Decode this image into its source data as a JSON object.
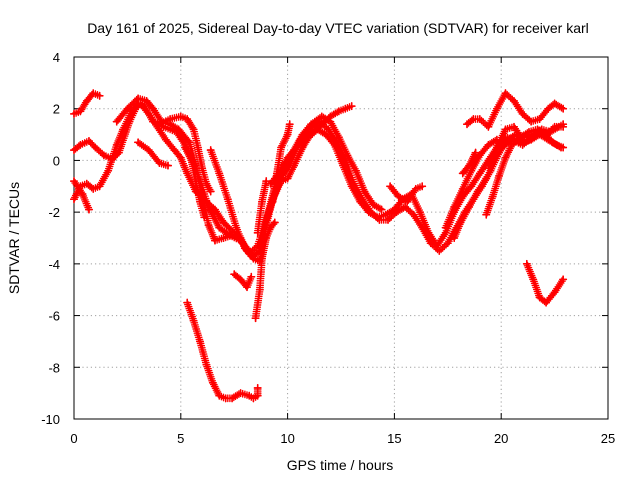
{
  "chart_data": {
    "type": "scatter",
    "title": "Day 161 of 2025, Sidereal Day-to-day VTEC variation (SDTVAR) for receiver karl",
    "xlabel": "GPS time / hours",
    "ylabel": "SDTVAR / TECUs",
    "xlim": [
      0,
      25
    ],
    "ylim": [
      -10,
      4
    ],
    "xticks": [
      "0",
      "5",
      "10",
      "15",
      "20",
      "25"
    ],
    "yticks": [
      "4",
      "2",
      "0",
      "-2",
      "-4",
      "-6",
      "-8",
      "-10"
    ],
    "grid": true,
    "marker": "plus",
    "color": "#ff0000",
    "series": [
      {
        "name": "s1",
        "points": [
          [
            0,
            1.8
          ],
          [
            0.3,
            1.9
          ],
          [
            0.6,
            2.3
          ],
          [
            0.9,
            2.6
          ],
          [
            1.2,
            2.5
          ]
        ]
      },
      {
        "name": "s2",
        "points": [
          [
            0,
            0.4
          ],
          [
            0.3,
            0.6
          ],
          [
            0.7,
            0.75
          ],
          [
            1.0,
            0.5
          ],
          [
            1.4,
            0.2
          ],
          [
            1.8,
            0.05
          ],
          [
            2.1,
            0.3
          ],
          [
            2.6,
            1.5
          ],
          [
            3.0,
            2.2
          ],
          [
            3.3,
            2.1
          ],
          [
            3.7,
            1.5
          ],
          [
            4.2,
            1.3
          ],
          [
            4.8,
            1.1
          ],
          [
            5.2,
            0.6
          ],
          [
            5.5,
            0.1
          ],
          [
            5.9,
            -0.8
          ],
          [
            6.3,
            -1.8
          ],
          [
            6.8,
            -2.6
          ],
          [
            7.3,
            -2.9
          ],
          [
            7.8,
            -3.1
          ],
          [
            8.1,
            -3.4
          ],
          [
            8.4,
            -3.8
          ],
          [
            8.7,
            -3.9
          ],
          [
            9.0,
            -2.5
          ],
          [
            9.3,
            -1.5
          ],
          [
            9.7,
            -0.8
          ],
          [
            10.0,
            -0.7
          ],
          [
            10.3,
            -0.2
          ],
          [
            10.7,
            0.5
          ],
          [
            11.0,
            0.9
          ],
          [
            11.4,
            1.2
          ],
          [
            11.8,
            1.0
          ],
          [
            12.2,
            0.6
          ],
          [
            12.6,
            -0.2
          ],
          [
            13.0,
            -1.0
          ],
          [
            13.4,
            -1.6
          ],
          [
            13.8,
            -2.0
          ],
          [
            14.2,
            -2.2
          ],
          [
            14.6,
            -2.1
          ],
          [
            15.0,
            -1.9
          ],
          [
            15.4,
            -1.5
          ],
          [
            15.8,
            -1.3
          ],
          [
            16.2,
            -2.0
          ],
          [
            16.6,
            -2.8
          ],
          [
            17.0,
            -3.3
          ],
          [
            17.4,
            -2.8
          ],
          [
            17.8,
            -2.0
          ],
          [
            18.2,
            -1.4
          ],
          [
            18.6,
            -1.0
          ],
          [
            19.0,
            -0.5
          ],
          [
            19.4,
            0.0
          ],
          [
            19.8,
            0.5
          ],
          [
            20.2,
            0.9
          ],
          [
            20.6,
            0.8
          ],
          [
            21.0,
            0.7
          ],
          [
            21.4,
            0.8
          ],
          [
            21.8,
            1.0
          ],
          [
            22.2,
            0.8
          ],
          [
            22.6,
            0.6
          ],
          [
            22.9,
            0.5
          ]
        ]
      },
      {
        "name": "s3",
        "points": [
          [
            0,
            -1.5
          ],
          [
            0.3,
            -1.0
          ],
          [
            0.6,
            -0.9
          ],
          [
            0.9,
            -1.1
          ],
          [
            1.2,
            -1.0
          ],
          [
            1.6,
            -0.4
          ],
          [
            2.0,
            0.6
          ],
          [
            2.3,
            1.2
          ],
          [
            2.7,
            1.9
          ],
          [
            3.1,
            2.2
          ],
          [
            3.5,
            1.8
          ],
          [
            3.9,
            1.3
          ],
          [
            4.3,
            0.8
          ],
          [
            4.7,
            0.4
          ],
          [
            5.0,
            0.1
          ],
          [
            5.3,
            -0.5
          ],
          [
            5.7,
            -1.2
          ],
          [
            6.2,
            -1.6
          ],
          [
            6.6,
            -1.9
          ],
          [
            7.0,
            -2.4
          ],
          [
            7.5,
            -2.8
          ],
          [
            7.9,
            -3.2
          ],
          [
            8.2,
            -3.6
          ],
          [
            8.6,
            -3.3
          ],
          [
            9.0,
            -2.3
          ],
          [
            9.4,
            -1.3
          ],
          [
            9.8,
            -0.5
          ],
          [
            10.2,
            0.1
          ],
          [
            10.6,
            0.8
          ],
          [
            11.0,
            1.2
          ],
          [
            11.5,
            1.5
          ],
          [
            11.9,
            1.2
          ],
          [
            12.3,
            0.7
          ],
          [
            12.7,
            0.0
          ],
          [
            13.1,
            -0.9
          ],
          [
            13.5,
            -1.5
          ],
          [
            13.9,
            -2.0
          ],
          [
            14.3,
            -2.3
          ],
          [
            14.7,
            -2.3
          ],
          [
            15.1,
            -2.0
          ],
          [
            15.5,
            -1.8
          ],
          [
            15.9,
            -2.1
          ],
          [
            16.3,
            -2.6
          ],
          [
            16.7,
            -3.2
          ],
          [
            17.1,
            -3.5
          ],
          [
            17.5,
            -3.2
          ],
          [
            17.9,
            -2.6
          ],
          [
            18.3,
            -2.0
          ],
          [
            18.7,
            -1.5
          ],
          [
            19.1,
            -1.0
          ],
          [
            19.5,
            -0.4
          ],
          [
            19.9,
            0.3
          ],
          [
            20.3,
            0.8
          ],
          [
            20.7,
            1.0
          ],
          [
            21.1,
            0.9
          ],
          [
            21.5,
            1.0
          ],
          [
            21.9,
            1.2
          ],
          [
            22.3,
            1.1
          ],
          [
            22.7,
            1.3
          ],
          [
            22.9,
            1.4
          ]
        ]
      },
      {
        "name": "s4",
        "points": [
          [
            0,
            -0.8
          ],
          [
            0.4,
            -1.3
          ],
          [
            0.7,
            -1.9
          ]
        ]
      },
      {
        "name": "s5",
        "points": [
          [
            2.0,
            1.5
          ],
          [
            2.5,
            2.0
          ],
          [
            3.0,
            2.4
          ],
          [
            3.4,
            2.3
          ],
          [
            3.7,
            2.0
          ],
          [
            4.1,
            1.5
          ],
          [
            4.5,
            1.4
          ],
          [
            4.9,
            1.2
          ],
          [
            5.4,
            0.7
          ],
          [
            5.7,
            -0.2
          ],
          [
            6.0,
            -1.4
          ],
          [
            6.3,
            -2.5
          ],
          [
            6.6,
            -3.1
          ],
          [
            7.0,
            -3.0
          ],
          [
            7.4,
            -2.9
          ],
          [
            7.8,
            -3.0
          ],
          [
            8.1,
            -3.5
          ],
          [
            8.4,
            -3.7
          ],
          [
            8.7,
            -3.5
          ],
          [
            9.1,
            -2.0
          ],
          [
            9.5,
            -0.7
          ],
          [
            9.9,
            -0.4
          ],
          [
            10.3,
            0.4
          ],
          [
            10.7,
            1.0
          ],
          [
            11.1,
            1.4
          ],
          [
            11.6,
            1.7
          ],
          [
            12.0,
            1.5
          ],
          [
            12.4,
            0.9
          ],
          [
            12.8,
            0.2
          ],
          [
            13.2,
            -0.4
          ],
          [
            13.6,
            -1.2
          ],
          [
            14.0,
            -1.7
          ],
          [
            14.4,
            -1.9
          ]
        ]
      },
      {
        "name": "s6",
        "points": [
          [
            3.0,
            0.7
          ],
          [
            3.5,
            0.4
          ],
          [
            4.0,
            -0.1
          ],
          [
            4.4,
            -0.2
          ]
        ]
      },
      {
        "name": "s7",
        "points": [
          [
            4.0,
            1.4
          ],
          [
            4.5,
            1.6
          ],
          [
            5.0,
            1.7
          ],
          [
            5.3,
            1.6
          ],
          [
            5.6,
            1.2
          ],
          [
            5.8,
            0.5
          ],
          [
            6.0,
            -0.3
          ],
          [
            6.2,
            -0.9
          ],
          [
            6.4,
            -1.2
          ]
        ]
      },
      {
        "name": "s8",
        "points": [
          [
            5.2,
            0.5
          ],
          [
            5.5,
            0.0
          ],
          [
            5.7,
            -0.8
          ],
          [
            5.9,
            -1.6
          ],
          [
            6.1,
            -2.2
          ]
        ]
      },
      {
        "name": "s9",
        "points": [
          [
            6.4,
            0.4
          ],
          [
            6.8,
            -0.5
          ],
          [
            7.2,
            -1.5
          ],
          [
            7.6,
            -2.6
          ],
          [
            8.0,
            -3.4
          ],
          [
            8.3,
            -3.7
          ]
        ]
      },
      {
        "name": "s10",
        "points": [
          [
            5.3,
            -5.5
          ],
          [
            5.6,
            -6.2
          ],
          [
            5.9,
            -7.0
          ],
          [
            6.2,
            -7.9
          ],
          [
            6.5,
            -8.6
          ],
          [
            6.8,
            -9.1
          ],
          [
            7.1,
            -9.2
          ],
          [
            7.4,
            -9.2
          ],
          [
            7.8,
            -9.0
          ],
          [
            8.2,
            -9.1
          ],
          [
            8.4,
            -9.2
          ],
          [
            8.6,
            -9.1
          ],
          [
            8.6,
            -8.8
          ]
        ]
      },
      {
        "name": "s11",
        "points": [
          [
            7.5,
            -4.4
          ],
          [
            7.8,
            -4.6
          ],
          [
            8.1,
            -4.9
          ],
          [
            8.3,
            -4.5
          ]
        ]
      },
      {
        "name": "s12",
        "points": [
          [
            8.5,
            -6.1
          ],
          [
            8.7,
            -5.0
          ],
          [
            8.8,
            -3.8
          ],
          [
            9.0,
            -3.0
          ],
          [
            9.2,
            -2.6
          ],
          [
            9.4,
            -2.4
          ]
        ]
      },
      {
        "name": "s13",
        "points": [
          [
            8.6,
            -2.8
          ],
          [
            8.8,
            -1.6
          ],
          [
            9.0,
            -0.8
          ]
        ]
      },
      {
        "name": "s14",
        "points": [
          [
            9.3,
            -1.6
          ],
          [
            9.5,
            -0.5
          ],
          [
            9.7,
            0.5
          ],
          [
            10.0,
            1.0
          ],
          [
            10.1,
            1.4
          ]
        ]
      },
      {
        "name": "s15",
        "points": [
          [
            9.2,
            -0.9
          ],
          [
            9.6,
            -0.5
          ],
          [
            10.0,
            0.1
          ],
          [
            10.5,
            0.6
          ],
          [
            11.0,
            1.0
          ],
          [
            11.5,
            1.3
          ],
          [
            12.0,
            1.7
          ],
          [
            12.4,
            1.9
          ],
          [
            12.7,
            2.0
          ],
          [
            13.0,
            2.1
          ]
        ]
      },
      {
        "name": "s16",
        "points": [
          [
            14.8,
            -1.0
          ],
          [
            15.2,
            -1.4
          ],
          [
            15.6,
            -1.6
          ],
          [
            16.0,
            -1.1
          ],
          [
            16.3,
            -1.0
          ]
        ]
      },
      {
        "name": "s17",
        "points": [
          [
            17.4,
            -2.6
          ],
          [
            17.8,
            -1.8
          ],
          [
            18.2,
            -1.1
          ],
          [
            18.6,
            -0.4
          ],
          [
            19.0,
            0.2
          ],
          [
            19.4,
            0.6
          ],
          [
            19.8,
            0.8
          ]
        ]
      },
      {
        "name": "s18",
        "points": [
          [
            18.2,
            -0.5
          ],
          [
            18.5,
            -0.2
          ],
          [
            18.8,
            0.3
          ]
        ]
      },
      {
        "name": "s19",
        "points": [
          [
            17.8,
            -3.0
          ],
          [
            18.1,
            -2.4
          ],
          [
            18.5,
            -1.8
          ],
          [
            18.9,
            -1.2
          ],
          [
            19.3,
            -0.7
          ]
        ]
      },
      {
        "name": "s20",
        "points": [
          [
            18.4,
            1.4
          ],
          [
            18.7,
            1.6
          ],
          [
            19.0,
            1.6
          ],
          [
            19.4,
            1.3
          ],
          [
            19.8,
            2.0
          ],
          [
            20.2,
            2.6
          ],
          [
            20.6,
            2.3
          ],
          [
            21.0,
            1.8
          ],
          [
            21.4,
            1.5
          ],
          [
            21.8,
            1.6
          ],
          [
            22.2,
            2.0
          ],
          [
            22.5,
            2.2
          ],
          [
            22.9,
            2.0
          ]
        ]
      },
      {
        "name": "s21",
        "points": [
          [
            19.3,
            -2.1
          ],
          [
            19.6,
            -1.4
          ],
          [
            19.9,
            -0.6
          ],
          [
            20.2,
            0.1
          ],
          [
            20.5,
            0.6
          ],
          [
            20.9,
            0.9
          ],
          [
            21.3,
            1.1
          ],
          [
            21.7,
            1.2
          ],
          [
            22.1,
            1.0
          ],
          [
            22.5,
            1.3
          ],
          [
            22.9,
            1.3
          ]
        ]
      },
      {
        "name": "s22",
        "points": [
          [
            20.0,
            0.5
          ],
          [
            20.5,
            0.8
          ],
          [
            21.0,
            0.6
          ],
          [
            21.5,
            0.9
          ],
          [
            22.0,
            1.1
          ],
          [
            22.4,
            0.7
          ],
          [
            22.8,
            0.5
          ]
        ]
      },
      {
        "name": "s23",
        "points": [
          [
            19.4,
            -0.3
          ],
          [
            19.8,
            0.5
          ],
          [
            20.2,
            1.2
          ],
          [
            20.6,
            1.3
          ],
          [
            21.0,
            0.8
          ]
        ]
      },
      {
        "name": "s24",
        "points": [
          [
            21.2,
            -4.0
          ],
          [
            21.5,
            -4.6
          ],
          [
            21.8,
            -5.3
          ],
          [
            22.1,
            -5.5
          ],
          [
            22.5,
            -5.1
          ],
          [
            22.9,
            -4.6
          ]
        ]
      }
    ]
  }
}
